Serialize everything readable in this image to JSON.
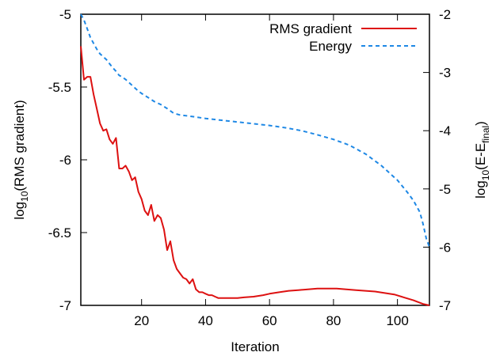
{
  "chart_data": {
    "type": "line",
    "xlabel": "Iteration",
    "ylabel_left": {
      "prefix": "log",
      "sub": "10",
      "suffix": "(RMS gradient)"
    },
    "ylabel_right": {
      "prefix": "log",
      "sub": "10",
      "suffix": "(E-E",
      "sub2": "final",
      "suffix2": ")"
    },
    "xlim": [
      1,
      110
    ],
    "ylim_left": [
      -7,
      -5
    ],
    "ylim_right": [
      -7,
      -2
    ],
    "x_ticks": [
      20,
      40,
      60,
      80,
      100
    ],
    "x_tick_labels": [
      "20",
      "40",
      "60",
      "80",
      "100"
    ],
    "y_left_ticks": [
      -5,
      -5.5,
      -6,
      -6.5,
      -7
    ],
    "y_left_tick_labels": [
      "-5",
      "-5.5",
      "-6",
      "-6.5",
      "-7"
    ],
    "y_right_ticks": [
      -2,
      -3,
      -4,
      -5,
      -6,
      -7
    ],
    "y_right_tick_labels": [
      "-2",
      "-3",
      "-4",
      "-5",
      "-6",
      "-7"
    ],
    "grid": false,
    "legend_position": "top-right",
    "series": [
      {
        "name": "RMS gradient",
        "axis": "left",
        "color": "#dd1111",
        "dash": "solid",
        "x": [
          1,
          2,
          3,
          4,
          5,
          6,
          7,
          8,
          9,
          10,
          11,
          12,
          13,
          14,
          15,
          16,
          17,
          18,
          19,
          20,
          21,
          22,
          23,
          24,
          25,
          26,
          27,
          28,
          29,
          30,
          31,
          32,
          33,
          34,
          35,
          36,
          37,
          38,
          39,
          40,
          41,
          42,
          43,
          44,
          45,
          46,
          48,
          50,
          52,
          55,
          58,
          60,
          63,
          66,
          69,
          72,
          75,
          78,
          81,
          84,
          87,
          90,
          93,
          96,
          99,
          102,
          105,
          108,
          110
        ],
        "y": [
          -5.22,
          -5.45,
          -5.43,
          -5.43,
          -5.55,
          -5.65,
          -5.75,
          -5.8,
          -5.79,
          -5.86,
          -5.89,
          -5.85,
          -6.06,
          -6.06,
          -6.04,
          -6.08,
          -6.14,
          -6.12,
          -6.22,
          -6.27,
          -6.35,
          -6.38,
          -6.31,
          -6.42,
          -6.38,
          -6.4,
          -6.48,
          -6.62,
          -6.56,
          -6.69,
          -6.75,
          -6.78,
          -6.81,
          -6.82,
          -6.85,
          -6.82,
          -6.89,
          -6.91,
          -6.91,
          -6.92,
          -6.93,
          -6.93,
          -6.94,
          -6.95,
          -6.95,
          -6.95,
          -6.95,
          -6.95,
          -6.945,
          -6.94,
          -6.93,
          -6.92,
          -6.91,
          -6.9,
          -6.895,
          -6.89,
          -6.885,
          -6.885,
          -6.885,
          -6.89,
          -6.895,
          -6.9,
          -6.905,
          -6.915,
          -6.925,
          -6.945,
          -6.965,
          -6.99,
          -7.0
        ]
      },
      {
        "name": "Energy",
        "axis": "right",
        "color": "#1e88e5",
        "dash": "dashed",
        "x": [
          1,
          2,
          3,
          4,
          5,
          6,
          7,
          8,
          9,
          10,
          11,
          12,
          13,
          14,
          15,
          16,
          17,
          18,
          19,
          20,
          22,
          24,
          26,
          28,
          30,
          32,
          35,
          40,
          45,
          50,
          55,
          60,
          65,
          70,
          75,
          80,
          85,
          90,
          95,
          100,
          103,
          105,
          107,
          108,
          109,
          110
        ],
        "y": [
          -2.0,
          -2.1,
          -2.25,
          -2.4,
          -2.5,
          -2.6,
          -2.68,
          -2.73,
          -2.78,
          -2.85,
          -2.92,
          -2.98,
          -3.05,
          -3.08,
          -3.12,
          -3.17,
          -3.22,
          -3.27,
          -3.32,
          -3.36,
          -3.43,
          -3.5,
          -3.55,
          -3.62,
          -3.7,
          -3.73,
          -3.75,
          -3.79,
          -3.82,
          -3.85,
          -3.88,
          -3.91,
          -3.95,
          -4.0,
          -4.07,
          -4.15,
          -4.25,
          -4.4,
          -4.6,
          -4.85,
          -5.05,
          -5.2,
          -5.4,
          -5.6,
          -5.85,
          -6.0
        ]
      }
    ]
  }
}
